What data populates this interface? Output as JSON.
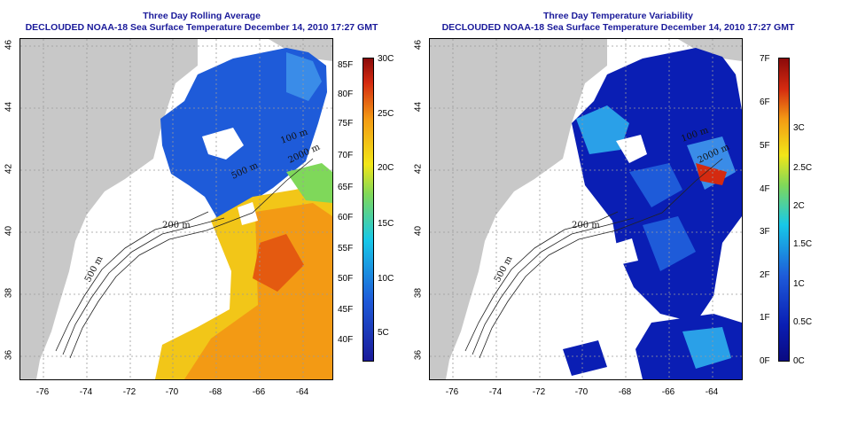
{
  "left": {
    "title1": "Three Day Rolling Average",
    "title2": "DECLOUDED NOAA-18 Sea Surface Temperature December 14, 2010 17:27 GMT",
    "colorbar_f": [
      "85F",
      "80F",
      "75F",
      "70F",
      "65F",
      "60F",
      "55F",
      "50F",
      "45F",
      "40F"
    ],
    "colorbar_c": [
      "30C",
      "25C",
      "20C",
      "15C",
      "10C",
      "5C"
    ],
    "contour_labels": [
      "200 m",
      "500 m",
      "2000 m",
      "100 m",
      "500 m"
    ]
  },
  "right": {
    "title1": "Three Day Temperature Variability",
    "title2": "DECLOUDED NOAA-18 Sea Surface Temperature December 14, 2010 17:27 GMT",
    "colorbar_f": [
      "7F",
      "6F",
      "5F",
      "4F",
      "3F",
      "2F",
      "1F",
      "0F"
    ],
    "colorbar_c": [
      "3C",
      "2.5C",
      "2C",
      "1.5C",
      "1C",
      "0.5C",
      "0C"
    ],
    "contour_labels": [
      "200 m",
      "500 m",
      "2000 m",
      "100 m"
    ]
  },
  "x_ticks": [
    "-76",
    "-74",
    "-72",
    "-70",
    "-68",
    "-66",
    "-64"
  ],
  "y_ticks": [
    "46",
    "44",
    "42",
    "40",
    "38",
    "36"
  ],
  "colors": {
    "title": "#1a1a9a",
    "land": "#c8c8c8",
    "sst_cold": "#1e5bd9",
    "sst_warm": "#f08a12",
    "variability_low": "#0a1eb4"
  }
}
